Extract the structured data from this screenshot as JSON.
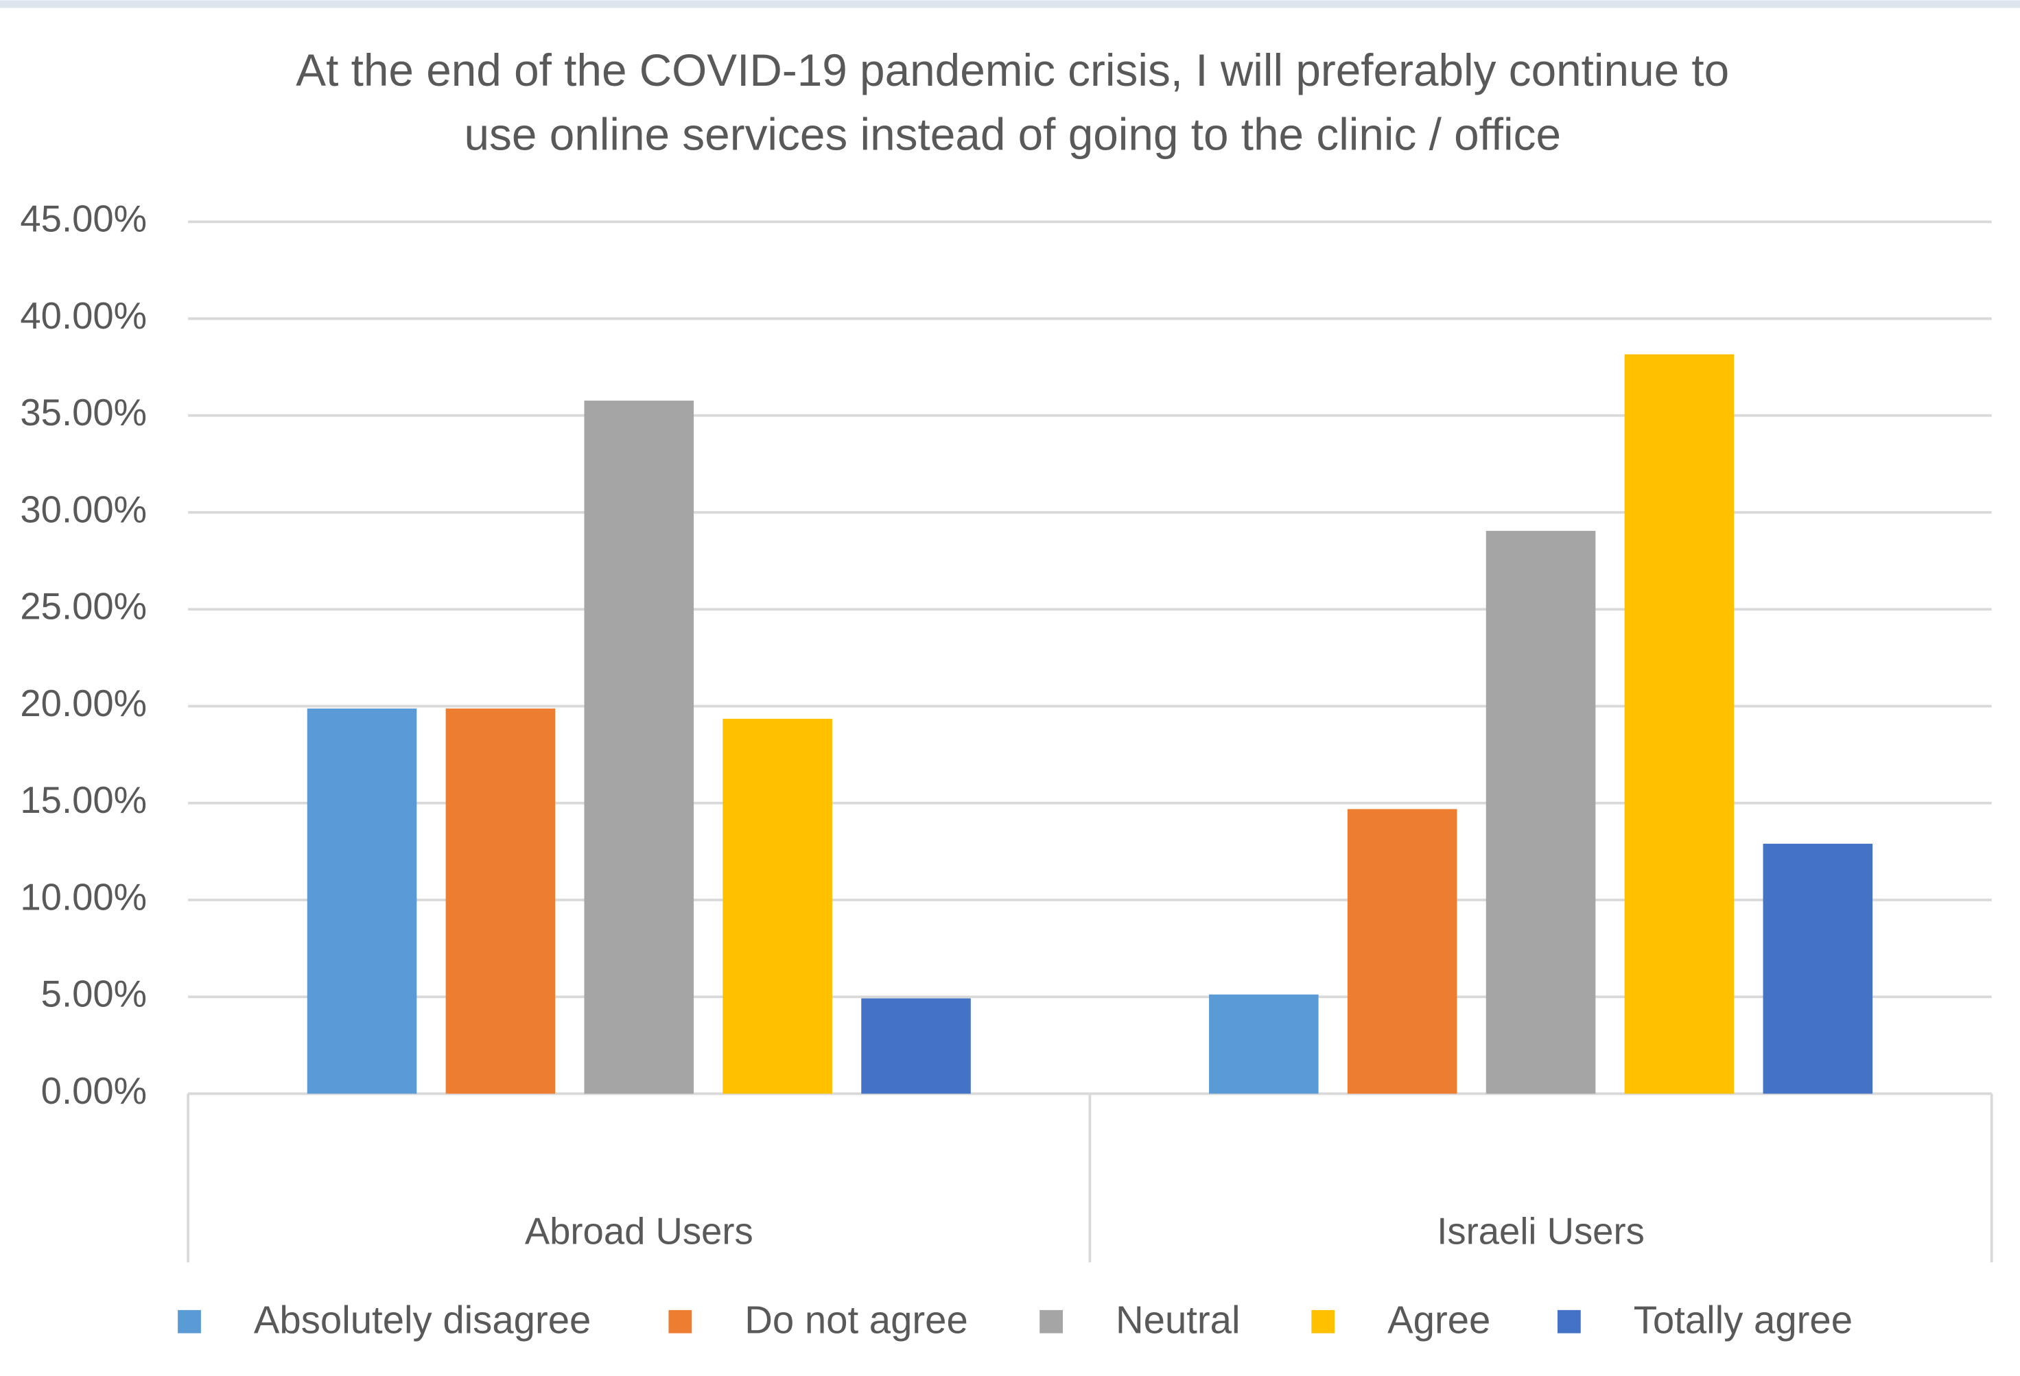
{
  "chart_data": {
    "type": "bar",
    "title": [
      "At the end of the COVID-19 pandemic crisis, I will preferably continue to",
      "use online services instead of going to the clinic / office"
    ],
    "categories": [
      "Abroad Users",
      "Israeli Users"
    ],
    "series": [
      {
        "name": "Absolutely disagree",
        "color": "#5b9bd5",
        "values": [
          19.88,
          5.12
        ]
      },
      {
        "name": "Do not agree",
        "color": "#ed7d31",
        "values": [
          19.88,
          14.69
        ]
      },
      {
        "name": "Neutral",
        "color": "#a5a5a5",
        "values": [
          35.77,
          29.05
        ]
      },
      {
        "name": "Agree",
        "color": "#ffc000",
        "values": [
          19.35,
          38.16
        ]
      },
      {
        "name": "Totally agree",
        "color": "#4472c4",
        "values": [
          4.92,
          12.9
        ]
      }
    ],
    "ylim": [
      0,
      45
    ],
    "yticks": [
      {
        "value": 0,
        "label": "0.00%"
      },
      {
        "value": 5,
        "label": "5.00%"
      },
      {
        "value": 10,
        "label": "10.00%"
      },
      {
        "value": 15,
        "label": "15.00%"
      },
      {
        "value": 20,
        "label": "20.00%"
      },
      {
        "value": 25,
        "label": "25.00%"
      },
      {
        "value": 30,
        "label": "30.00%"
      },
      {
        "value": 35,
        "label": "35.00%"
      },
      {
        "value": 40,
        "label": "40.00%"
      },
      {
        "value": 45,
        "label": "45.00%"
      }
    ],
    "grid": true,
    "legend": "bottom"
  }
}
